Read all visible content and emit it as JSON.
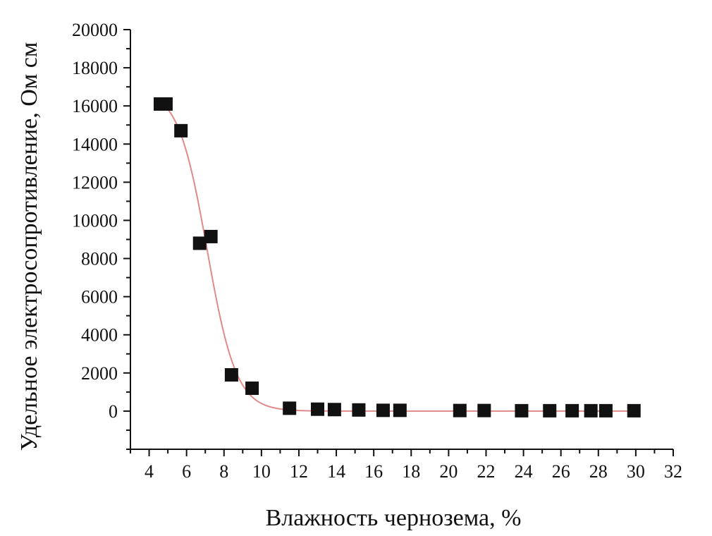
{
  "chart_data": {
    "type": "scatter",
    "xlabel": "Влажность чернозема, %",
    "ylabel": "Удельное электросопротивление, Ом см",
    "xlim": [
      3,
      32
    ],
    "ylim": [
      -2000,
      20000
    ],
    "xticks": [
      4,
      6,
      8,
      10,
      12,
      14,
      16,
      18,
      20,
      22,
      24,
      26,
      28,
      30,
      32
    ],
    "yticks": [
      0,
      2000,
      4000,
      6000,
      8000,
      10000,
      12000,
      14000,
      16000,
      18000,
      20000
    ],
    "grid": false,
    "colors": {
      "marker": "#111111",
      "fit_line": "#e08a8a",
      "axis": "#111111"
    },
    "series": [
      {
        "marker": "square",
        "x": [
          4.6,
          4.9,
          5.7,
          6.7,
          7.3,
          8.4,
          9.5,
          11.5,
          13.0,
          13.9,
          15.2,
          16.5,
          17.4,
          20.6,
          21.9,
          23.9,
          25.4,
          26.6,
          27.6,
          28.4,
          29.9
        ],
        "y": [
          16100,
          16100,
          14700,
          8800,
          9150,
          1900,
          1200,
          150,
          100,
          80,
          60,
          40,
          40,
          30,
          30,
          20,
          20,
          20,
          20,
          20,
          20
        ]
      }
    ],
    "fit": {
      "model": "sigmoid",
      "top": 16900,
      "bottom": 0,
      "center": 7.1,
      "slope": 0.78,
      "x_range": [
        4.6,
        30
      ]
    }
  }
}
